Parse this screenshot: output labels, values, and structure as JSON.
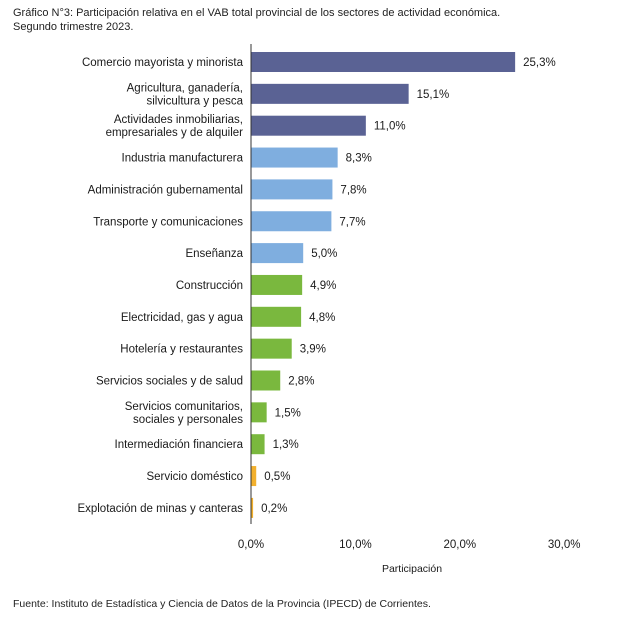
{
  "title_line1": "Gráfico N°3: Participación relativa en el VAB total provincial de los sectores de actividad económica.",
  "title_line2": "Segundo trimestre 2023.",
  "source": "Fuente: Instituto de Estadística y Ciencia de Datos de la Provincia (IPECD) de Corrientes.",
  "colors": {
    "dark": "#5a6294",
    "light": "#7faedf",
    "green": "#7ab83e",
    "orange": "#f2b02d"
  },
  "chart_data": {
    "type": "bar",
    "orientation": "horizontal",
    "title": "",
    "xlabel": "Participación",
    "ylabel": "",
    "xlim": [
      0,
      30
    ],
    "xticks": [
      "0,0%",
      "10,0%",
      "20,0%",
      "30,0%"
    ],
    "grid": false,
    "categories": [
      [
        "Comercio mayorista y minorista"
      ],
      [
        "Agricultura, ganadería,",
        "silvicultura y pesca"
      ],
      [
        "Actividades inmobiliarias,",
        "empresariales y de alquiler"
      ],
      [
        "Industria manufacturera"
      ],
      [
        "Administración gubernamental"
      ],
      [
        "Transporte y comunicaciones"
      ],
      [
        "Enseñanza"
      ],
      [
        "Construcción"
      ],
      [
        "Electricidad, gas y agua"
      ],
      [
        "Hotelería y restaurantes"
      ],
      [
        "Servicios sociales y de salud"
      ],
      [
        "Servicios comunitarios,",
        "sociales y personales"
      ],
      [
        "Intermediación financiera"
      ],
      [
        "Servicio doméstico"
      ],
      [
        "Explotación de minas y canteras"
      ]
    ],
    "values": [
      25.3,
      15.1,
      11.0,
      8.3,
      7.8,
      7.7,
      5.0,
      4.9,
      4.8,
      3.9,
      2.8,
      1.5,
      1.3,
      0.5,
      0.2
    ],
    "value_labels": [
      "25,3%",
      "15,1%",
      "11,0%",
      "8,3%",
      "7,8%",
      "7,7%",
      "5,0%",
      "4,9%",
      "4,8%",
      "3,9%",
      "2,8%",
      "1,5%",
      "1,3%",
      "0,5%",
      "0,2%"
    ],
    "color_groups": [
      "dark",
      "dark",
      "dark",
      "light",
      "light",
      "light",
      "light",
      "green",
      "green",
      "green",
      "green",
      "green",
      "green",
      "orange",
      "orange"
    ]
  }
}
